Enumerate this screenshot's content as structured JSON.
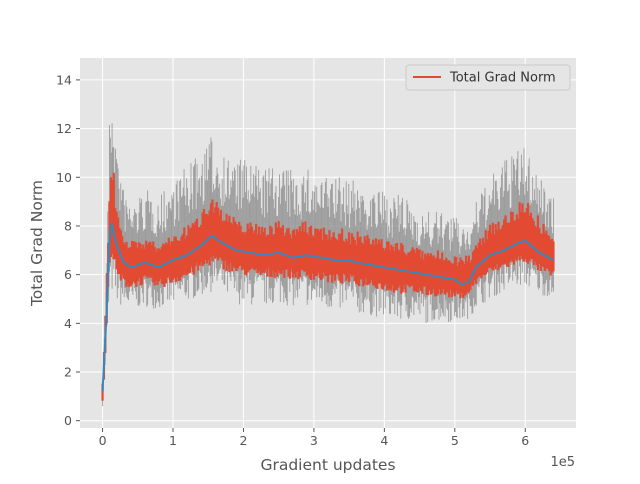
{
  "chart_data": {
    "type": "line",
    "title": "",
    "xlabel": "Gradient updates",
    "ylabel": "Total Grad Norm",
    "x_offset_label": "1e5",
    "xlim": [
      -32000,
      672000
    ],
    "ylim": [
      -0.3,
      14.9
    ],
    "x_ticks": [
      0,
      100000,
      200000,
      300000,
      400000,
      500000,
      600000
    ],
    "x_tick_labels": [
      "0",
      "1",
      "2",
      "3",
      "4",
      "5",
      "6"
    ],
    "y_ticks": [
      0,
      2,
      4,
      6,
      8,
      10,
      12,
      14
    ],
    "y_tick_labels": [
      "0",
      "2",
      "4",
      "6",
      "8",
      "10",
      "12",
      "14"
    ],
    "grid": true,
    "legend": {
      "position": "upper right",
      "entries": [
        "Total Grad Norm"
      ]
    },
    "colors": {
      "background": "#e5e5e5",
      "grid": "#ffffff",
      "raw": "#8f8f8f",
      "band": "#e24a33",
      "mean": "#348abd"
    },
    "series": [
      {
        "name": "Total Grad Norm",
        "x": [
          0,
          5000,
          10000,
          13000,
          20000,
          30000,
          40000,
          50000,
          60000,
          70000,
          80000,
          100000,
          120000,
          140000,
          155000,
          170000,
          190000,
          210000,
          230000,
          250000,
          270000,
          290000,
          310000,
          330000,
          350000,
          360000,
          380000,
          400000,
          420000,
          440000,
          460000,
          480000,
          500000,
          510000,
          520000,
          530000,
          550000,
          570000,
          590000,
          600000,
          620000,
          640000
        ],
        "mean": [
          1.2,
          4.0,
          7.5,
          8.1,
          7.2,
          6.5,
          6.3,
          6.4,
          6.5,
          6.4,
          6.3,
          6.6,
          6.8,
          7.2,
          7.6,
          7.3,
          7.0,
          6.9,
          6.8,
          6.9,
          6.7,
          6.8,
          6.7,
          6.6,
          6.6,
          6.5,
          6.4,
          6.3,
          6.2,
          6.1,
          6.0,
          5.9,
          5.8,
          5.6,
          5.7,
          6.3,
          6.8,
          7.0,
          7.3,
          7.4,
          6.9,
          6.6
        ],
        "lower": [
          0.6,
          3.0,
          6.5,
          6.8,
          5.7,
          5.5,
          5.4,
          5.5,
          5.6,
          5.5,
          5.4,
          5.6,
          5.8,
          6.1,
          6.4,
          6.2,
          6.0,
          5.9,
          5.8,
          5.9,
          5.8,
          5.8,
          5.7,
          5.6,
          5.6,
          5.5,
          5.5,
          5.3,
          5.2,
          5.2,
          5.1,
          5.1,
          5.0,
          5.0,
          5.2,
          5.6,
          6.0,
          6.2,
          6.4,
          6.5,
          6.1,
          5.8
        ],
        "upper": [
          1.6,
          5.5,
          9.5,
          11.1,
          9.0,
          7.8,
          7.4,
          7.4,
          7.5,
          7.4,
          7.3,
          7.7,
          8.0,
          8.6,
          9.5,
          8.7,
          8.3,
          8.2,
          8.1,
          8.2,
          8.1,
          8.2,
          8.0,
          8.0,
          7.8,
          7.8,
          7.6,
          7.5,
          7.4,
          7.2,
          7.0,
          7.0,
          6.9,
          6.8,
          6.8,
          7.3,
          8.2,
          8.5,
          9.0,
          9.3,
          8.4,
          7.6
        ],
        "raw_low": [
          0.6,
          2.5,
          5.0,
          5.2,
          4.8,
          4.6,
          4.5,
          4.6,
          4.7,
          4.6,
          4.6,
          4.7,
          4.9,
          5.1,
          5.3,
          5.1,
          4.8,
          4.7,
          4.7,
          4.8,
          4.7,
          4.7,
          4.6,
          4.5,
          4.5,
          4.4,
          4.3,
          4.2,
          4.1,
          4.1,
          4.0,
          4.1,
          4.0,
          4.1,
          4.2,
          4.6,
          5.0,
          5.3,
          5.5,
          5.5,
          5.2,
          5.0
        ],
        "raw_high": [
          1.6,
          6.0,
          12.5,
          14.3,
          11.5,
          9.5,
          9.0,
          9.2,
          9.5,
          9.4,
          9.2,
          10.0,
          10.5,
          11.0,
          11.7,
          11.0,
          10.8,
          10.7,
          10.4,
          10.5,
          10.3,
          10.4,
          10.0,
          10.2,
          9.8,
          10.0,
          9.6,
          9.4,
          9.3,
          8.9,
          8.6,
          8.6,
          8.4,
          8.3,
          8.3,
          9.0,
          10.0,
          10.7,
          11.2,
          11.3,
          10.2,
          9.2
        ]
      }
    ]
  }
}
